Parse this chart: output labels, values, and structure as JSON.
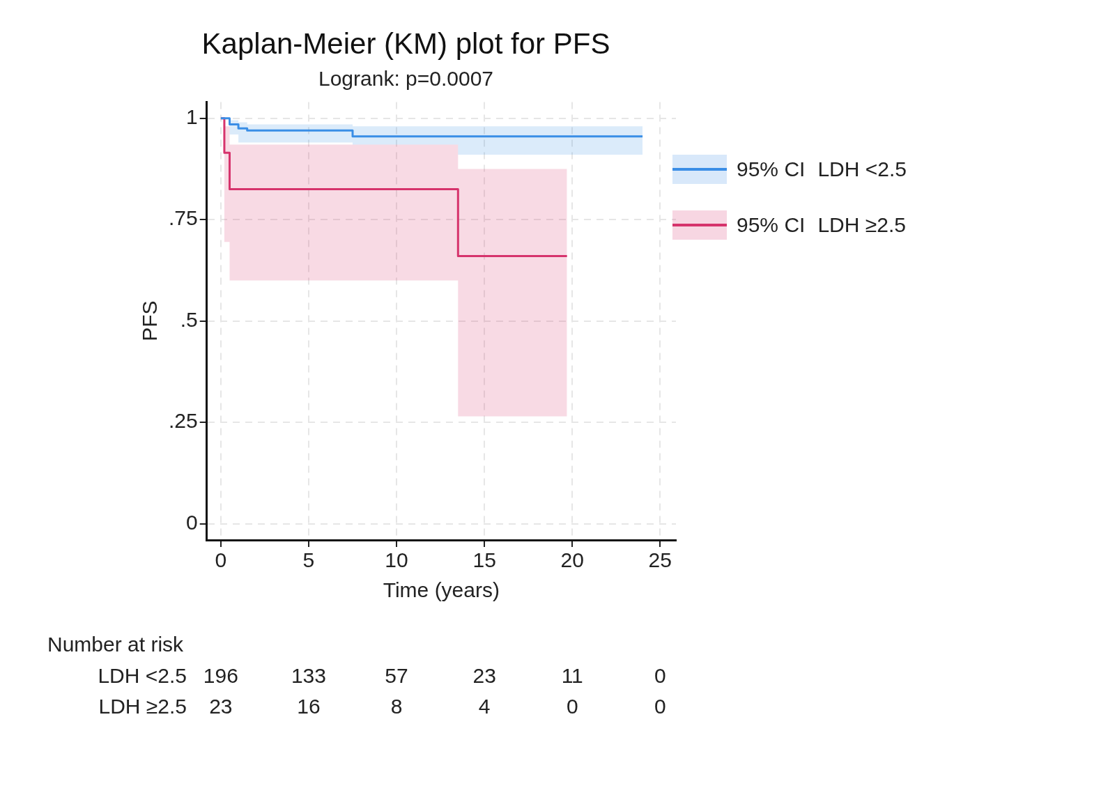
{
  "chart_data": {
    "type": "step",
    "title": "Kaplan-Meier (KM) plot for PFS",
    "subtitle": "Logrank: p=0.0007",
    "xlabel": "Time (years)",
    "ylabel": "PFS",
    "xlim": [
      -0.8,
      25.9
    ],
    "xticks": [
      0,
      5,
      10,
      15,
      20,
      25
    ],
    "ylim": [
      -0.04,
      1.04
    ],
    "yticks": [
      0,
      {
        "value": 0.25,
        "label": ".25"
      },
      {
        "value": 0.5,
        "label": ".5"
      },
      {
        "value": 0.75,
        "label": ".75"
      },
      1
    ],
    "grid": true,
    "legend": "top right",
    "line_style": "solid",
    "marker": "none",
    "series": [
      {
        "name": "LDH <2.5",
        "color": "#3a8ee6",
        "x": [
          0,
          0.5,
          1,
          1.5,
          7.5,
          13.5,
          24
        ],
        "values": [
          1,
          0.985,
          0.975,
          0.97,
          0.955,
          0.955,
          0.955
        ],
        "upper": [
          1,
          0.995,
          0.99,
          0.985,
          0.98,
          0.98,
          0.98
        ],
        "lower": [
          1,
          0.96,
          0.94,
          0.94,
          0.935,
          0.91,
          0.91
        ]
      },
      {
        "name": "LDH ≥2.5",
        "color": "#d6336c",
        "x": [
          0,
          0.2,
          0.5,
          13.5,
          19.7
        ],
        "values": [
          1,
          0.915,
          0.825,
          0.66,
          0.66
        ],
        "upper": [
          1,
          0.98,
          0.935,
          0.875,
          0.875
        ],
        "lower": [
          1,
          0.695,
          0.6,
          0.265,
          0.265
        ]
      }
    ],
    "annotations": [
      "95% CI",
      "95% CI",
      "Number at risk",
      "196",
      "133",
      "57",
      "23",
      "11",
      "0",
      "23",
      "16",
      "8",
      "4",
      "0",
      "0"
    ]
  }
}
